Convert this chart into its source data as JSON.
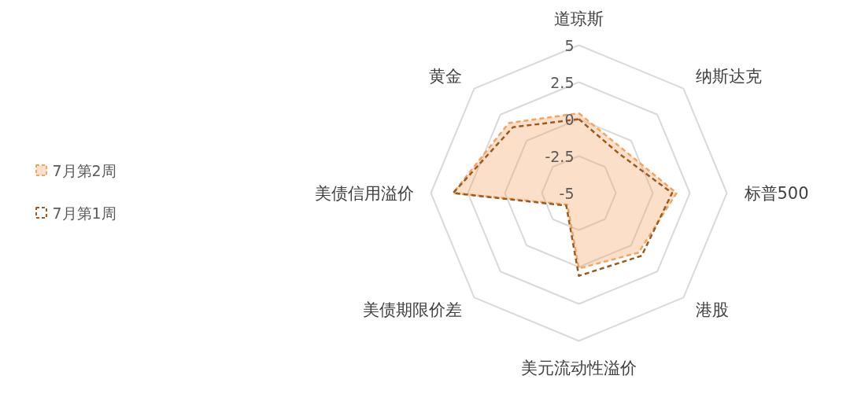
{
  "chart_data": {
    "type": "radar",
    "categories": [
      "道琼斯",
      "纳斯达克",
      "标普500",
      "港股",
      "美元流动性溢价",
      "美债期限价差",
      "美债信用溢价",
      "黄金"
    ],
    "ylim": [
      -5,
      5
    ],
    "yticks": [
      -5,
      -2.5,
      0,
      2.5,
      5
    ],
    "legend": "left",
    "line_style": "dashed",
    "marker": "none",
    "series": [
      {
        "name": "7月第2周",
        "color": "#f4a460",
        "values": [
          0.4,
          -0.8,
          1.6,
          0.7,
          0.1,
          -3.9,
          3.5,
          1.7
        ]
      },
      {
        "name": "7月第1周",
        "color": "#9c5a1f",
        "values": [
          0.0,
          -1.2,
          1.3,
          1.0,
          0.6,
          -3.8,
          3.5,
          1.3
        ]
      }
    ]
  }
}
